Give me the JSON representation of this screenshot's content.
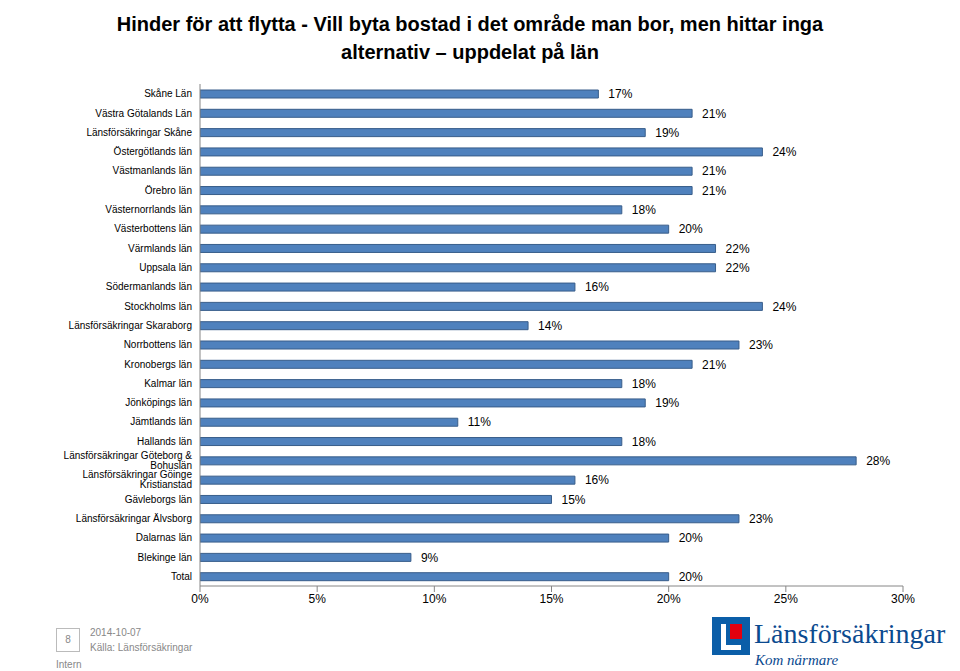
{
  "chart_data": {
    "type": "bar",
    "title": "Hinder för att flytta - Vill byta bostad i det område man bor, men hittar inga alternativ – uppdelat på län",
    "orientation": "horizontal",
    "categories": [
      "Skåne Län",
      "Västra Götalands Län",
      "Länsförsäkringar Skåne",
      "Östergötlands län",
      "Västmanlands län",
      "Örebro län",
      "Västernorrlands län",
      "Västerbottens län",
      "Värmlands län",
      "Uppsala län",
      "Södermanlands län",
      "Stockholms län",
      "Länsförsäkringar Skaraborg",
      "Norrbottens län",
      "Kronobergs län",
      "Kalmar län",
      "Jönköpings län",
      "Jämtlands län",
      "Hallands län",
      "Länsförsäkringar Göteborg & Bohuslän",
      "Länsförsäkringar Göinge Kristianstad",
      "Gävleborgs län",
      "Länsförsäkringar Älvsborg",
      "Dalarnas län",
      "Blekinge län",
      "Total"
    ],
    "values": [
      17,
      21,
      19,
      24,
      21,
      21,
      18,
      20,
      22,
      22,
      16,
      24,
      14,
      23,
      21,
      18,
      19,
      11,
      18,
      28,
      16,
      15,
      23,
      20,
      9,
      20
    ],
    "value_labels": [
      "17%",
      "21%",
      "19%",
      "24%",
      "21%",
      "21%",
      "18%",
      "20%",
      "22%",
      "22%",
      "16%",
      "24%",
      "14%",
      "23%",
      "21%",
      "18%",
      "19%",
      "11%",
      "18%",
      "28%",
      "16%",
      "15%",
      "23%",
      "20%",
      "9%",
      "20%"
    ],
    "color": "#4f81bd",
    "xlim": [
      0,
      30
    ],
    "xticks": [
      {
        "value": 0,
        "label": "0%"
      },
      {
        "value": 5,
        "label": "5%"
      },
      {
        "value": 10,
        "label": "10%"
      },
      {
        "value": 15,
        "label": "15%"
      },
      {
        "value": 20,
        "label": "20%"
      },
      {
        "value": 25,
        "label": "25%"
      },
      {
        "value": 30,
        "label": "30%"
      }
    ],
    "grid": false,
    "data_labels": true,
    "annotations": {
      "page": "8",
      "date": "2014-10-07",
      "source": "Källa: Länsförsäkringar",
      "classification": "Intern",
      "logo": "Länsförsäkringar",
      "slogan": "Kom närmare"
    }
  }
}
